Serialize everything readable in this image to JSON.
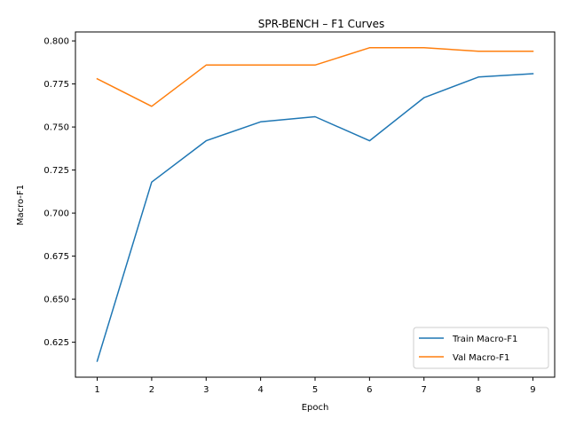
{
  "chart_data": {
    "type": "line",
    "title": "SPR-BENCH – F1 Curves",
    "xlabel": "Epoch",
    "ylabel": "Macro-F1",
    "x": [
      1,
      2,
      3,
      4,
      5,
      6,
      7,
      8,
      9
    ],
    "x_ticks": [
      "1",
      "2",
      "3",
      "4",
      "5",
      "6",
      "7",
      "8",
      "9"
    ],
    "y_ticks": [
      "0.625",
      "0.650",
      "0.675",
      "0.700",
      "0.725",
      "0.750",
      "0.775",
      "0.800"
    ],
    "y_tick_values": [
      0.625,
      0.65,
      0.675,
      0.7,
      0.725,
      0.75,
      0.775,
      0.8
    ],
    "xlim": [
      0.6,
      9.4
    ],
    "ylim": [
      0.6047,
      0.8052
    ],
    "grid": false,
    "legend_position": "lower-right",
    "series": [
      {
        "name": "Train Macro-F1",
        "color": "#1f77b4",
        "values": [
          0.614,
          0.718,
          0.742,
          0.753,
          0.756,
          0.742,
          0.767,
          0.779,
          0.781
        ]
      },
      {
        "name": "Val Macro-F1",
        "color": "#ff7f0e",
        "values": [
          0.778,
          0.762,
          0.786,
          0.786,
          0.786,
          0.796,
          0.796,
          0.794,
          0.794
        ]
      }
    ]
  }
}
